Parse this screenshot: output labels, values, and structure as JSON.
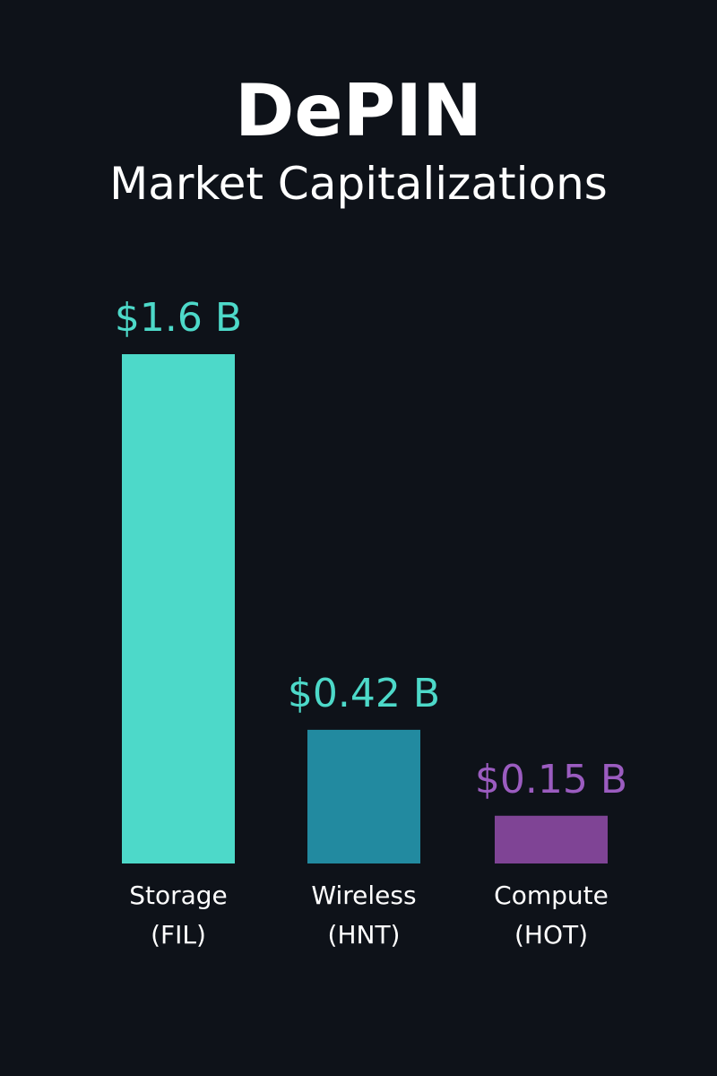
{
  "chart_data": {
    "type": "bar",
    "title": "DePIN",
    "subtitle": "Market Capitalizations",
    "categories": [
      {
        "line1": "Storage",
        "line2": "(FIL)"
      },
      {
        "line1": "Wireless",
        "line2": "(HNT)"
      },
      {
        "line1": "Compute",
        "line2": "(HOT)"
      }
    ],
    "values": [
      1.6,
      0.42,
      0.15
    ],
    "value_labels": [
      "$1.6 B",
      "$0.42 B",
      "$0.15 B"
    ],
    "bar_colors": [
      "#4dd9c9",
      "#228aa0",
      "#7f4495"
    ],
    "label_colors": [
      "#4dd9c9",
      "#4dd9c9",
      "#9b5cc0"
    ],
    "unit": "B",
    "grid": false,
    "legend": "none"
  }
}
